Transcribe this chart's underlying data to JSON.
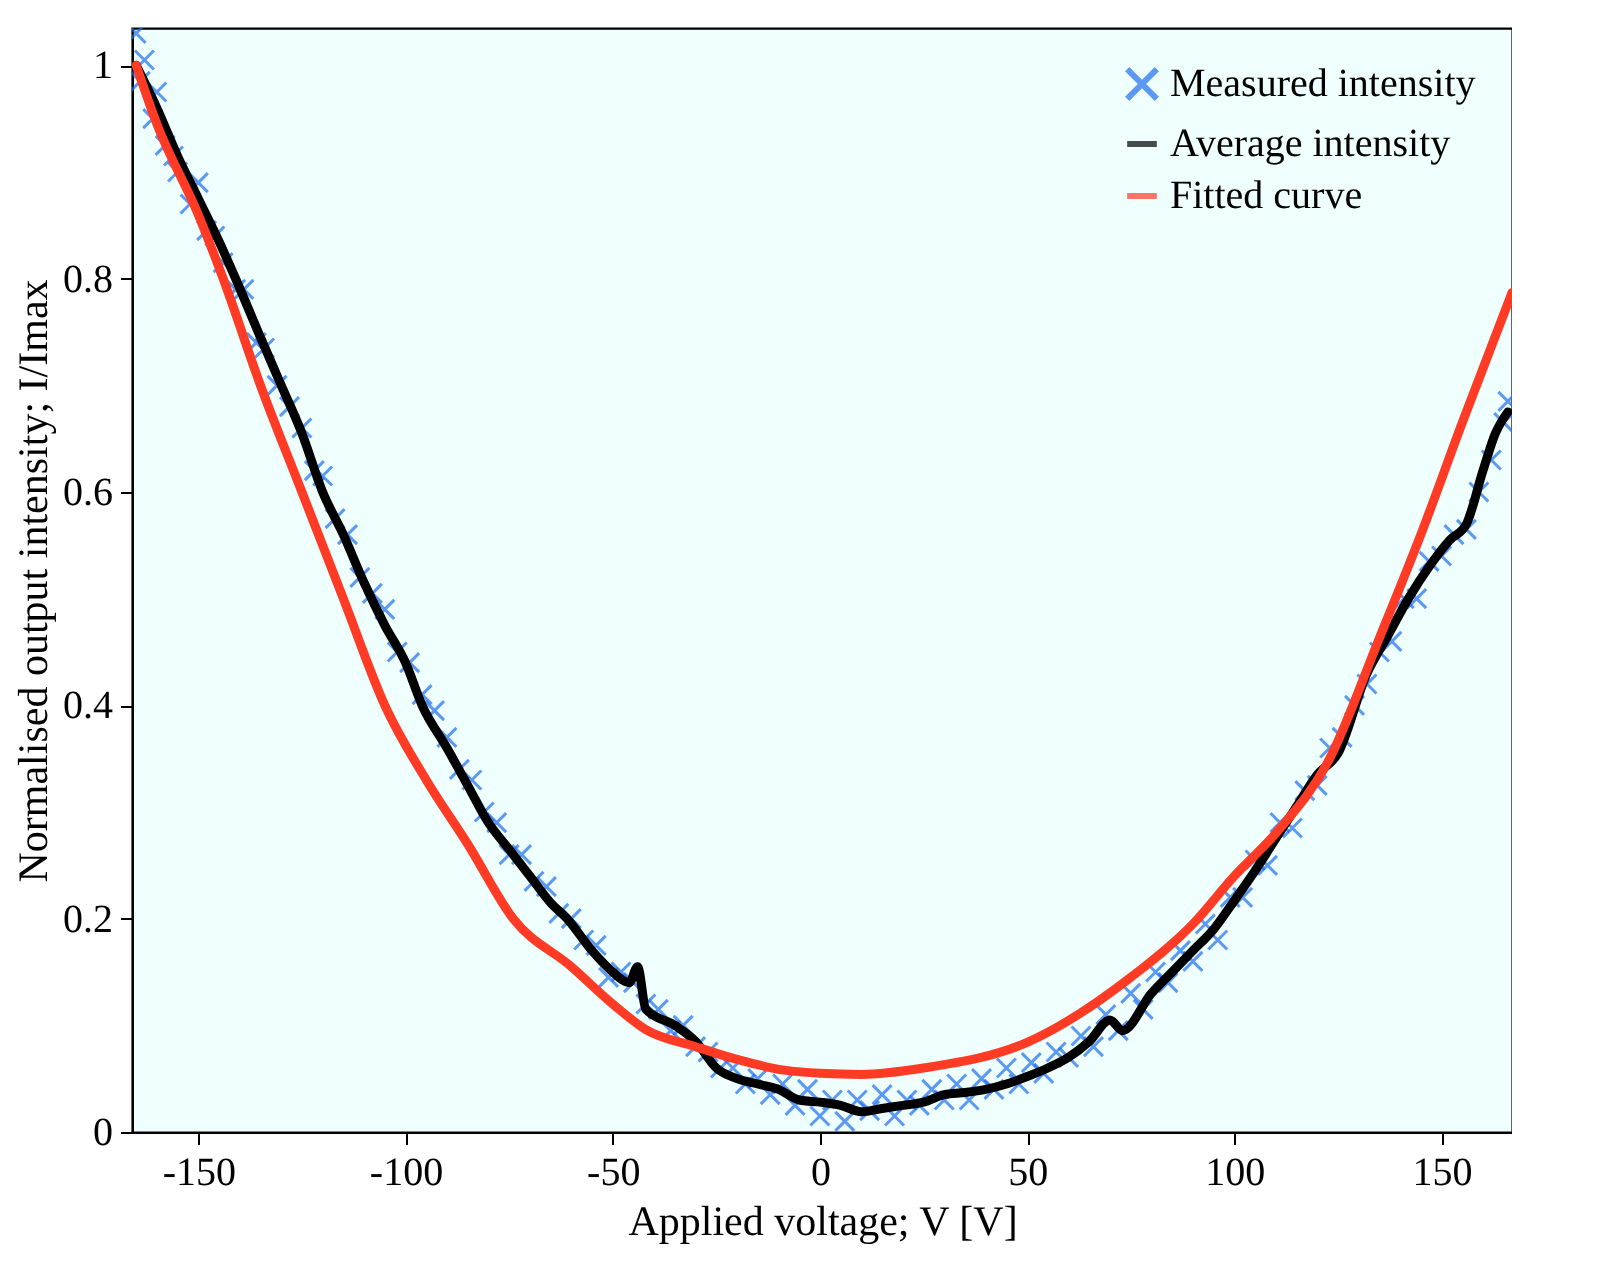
{
  "chart_data": {
    "type": "line",
    "xlabel": "Applied voltage; V [V]",
    "ylabel": "Normalised output intensity; I/Imax",
    "xlim": [
      -166,
      167
    ],
    "ylim": [
      0,
      1.035
    ],
    "xticks": [
      -150,
      -100,
      -50,
      0,
      50,
      100,
      150
    ],
    "yticks": [
      0,
      0.2,
      0.4,
      0.6,
      0.8,
      1
    ],
    "grid": false,
    "legend": "top right",
    "series": [
      {
        "name": "Measured intensity",
        "type": "scatter",
        "marker": "cross",
        "color": "#1f6ef0",
        "x": [
          -165,
          -164,
          -163,
          -161,
          -160,
          -158,
          -156,
          -155,
          -152,
          -150,
          -148,
          -146,
          -144,
          -141,
          -139,
          -136,
          -134,
          -131,
          -128,
          -125,
          -122,
          -120,
          -117,
          -114,
          -111,
          -108,
          -105,
          -102,
          -99,
          -96,
          -93,
          -90,
          -87,
          -84,
          -81,
          -78,
          -75,
          -72,
          -69,
          -66,
          -63,
          -60,
          -57,
          -54,
          -51,
          -48,
          -45,
          -42,
          -39,
          -36,
          -33,
          -30,
          -27,
          -24,
          -21,
          -18,
          -15,
          -12,
          -9,
          -6,
          -3,
          0,
          3,
          6,
          9,
          12,
          15,
          18,
          21,
          24,
          27,
          30,
          33,
          36,
          39,
          42,
          45,
          48,
          51,
          54,
          57,
          60,
          63,
          66,
          69,
          72,
          75,
          78,
          81,
          84,
          87,
          90,
          93,
          96,
          99,
          102,
          105,
          108,
          111,
          114,
          117,
          120,
          123,
          126,
          129,
          132,
          135,
          138,
          141,
          144,
          147,
          150,
          153,
          156,
          159,
          162,
          165,
          166
        ],
        "values": [
          1.03,
          0.985,
          1.005,
          0.95,
          0.975,
          0.925,
          0.915,
          0.9,
          0.87,
          0.89,
          0.845,
          0.84,
          0.815,
          0.79,
          0.79,
          0.74,
          0.735,
          0.7,
          0.68,
          0.66,
          0.62,
          0.615,
          0.575,
          0.56,
          0.52,
          0.505,
          0.49,
          0.45,
          0.44,
          0.41,
          0.395,
          0.37,
          0.34,
          0.33,
          0.3,
          0.29,
          0.26,
          0.26,
          0.235,
          0.23,
          0.205,
          0.2,
          0.18,
          0.175,
          0.145,
          0.15,
          0.14,
          0.12,
          0.115,
          0.095,
          0.1,
          0.08,
          0.075,
          0.06,
          0.06,
          0.045,
          0.05,
          0.035,
          0.045,
          0.025,
          0.04,
          0.015,
          0.03,
          0.01,
          0.03,
          0.02,
          0.035,
          0.015,
          0.03,
          0.025,
          0.04,
          0.03,
          0.045,
          0.03,
          0.05,
          0.04,
          0.06,
          0.045,
          0.065,
          0.055,
          0.075,
          0.07,
          0.09,
          0.08,
          0.11,
          0.095,
          0.13,
          0.115,
          0.15,
          0.14,
          0.17,
          0.16,
          0.195,
          0.18,
          0.22,
          0.22,
          0.255,
          0.25,
          0.29,
          0.285,
          0.32,
          0.325,
          0.36,
          0.37,
          0.4,
          0.42,
          0.45,
          0.46,
          0.5,
          0.5,
          0.535,
          0.54,
          0.56,
          0.565,
          0.6,
          0.63,
          0.665,
          0.685
        ]
      },
      {
        "name": "Average intensity",
        "type": "line",
        "color": "#000000",
        "x": [
          -165,
          -160,
          -155,
          -150,
          -145,
          -141,
          -135,
          -130,
          -125,
          -120,
          -115,
          -110,
          -105,
          -100,
          -96,
          -90,
          -85,
          -80,
          -75,
          -70,
          -65,
          -61,
          -55,
          -50,
          -46,
          -44,
          -42,
          -35,
          -30,
          -25,
          -20,
          -15,
          -10,
          -5,
          0,
          5,
          10,
          15,
          20,
          25,
          30,
          35,
          40,
          45,
          50,
          55,
          60,
          65,
          70,
          73,
          80,
          85,
          90,
          95,
          100,
          105,
          110,
          115,
          120,
          125,
          132,
          137,
          142,
          147,
          152,
          156,
          160,
          163,
          166
        ],
        "values": [
          1.0,
          0.96,
          0.915,
          0.875,
          0.835,
          0.8,
          0.745,
          0.7,
          0.655,
          0.6,
          0.56,
          0.515,
          0.475,
          0.44,
          0.4,
          0.36,
          0.325,
          0.29,
          0.265,
          0.24,
          0.215,
          0.2,
          0.17,
          0.15,
          0.14,
          0.155,
          0.115,
          0.1,
          0.085,
          0.06,
          0.05,
          0.045,
          0.04,
          0.03,
          0.028,
          0.025,
          0.019,
          0.022,
          0.025,
          0.028,
          0.035,
          0.037,
          0.04,
          0.045,
          0.052,
          0.06,
          0.07,
          0.085,
          0.105,
          0.095,
          0.13,
          0.15,
          0.17,
          0.19,
          0.217,
          0.245,
          0.275,
          0.305,
          0.335,
          0.355,
          0.43,
          0.465,
          0.5,
          0.53,
          0.555,
          0.57,
          0.62,
          0.655,
          0.675
        ]
      },
      {
        "name": "Fitted curve",
        "type": "line",
        "color": "#ff3b26",
        "x": [
          -165,
          -160,
          -150,
          -144,
          -135,
          -125,
          -115,
          -105,
          -95,
          -85,
          -74,
          -60,
          -50,
          -42,
          -30,
          -20,
          -8.6,
          0,
          10,
          25,
          50,
          75,
          90,
          100,
          110,
          123,
          135,
          145,
          155,
          167
        ],
        "values": [
          1.0,
          0.945,
          0.86,
          0.8,
          0.7,
          0.6,
          0.5,
          0.4,
          0.33,
          0.27,
          0.2,
          0.155,
          0.12,
          0.096,
          0.08,
          0.068,
          0.058,
          0.055,
          0.054,
          0.06,
          0.084,
          0.145,
          0.195,
          0.24,
          0.28,
          0.35,
          0.463,
          0.56,
          0.665,
          0.787
        ]
      }
    ]
  }
}
